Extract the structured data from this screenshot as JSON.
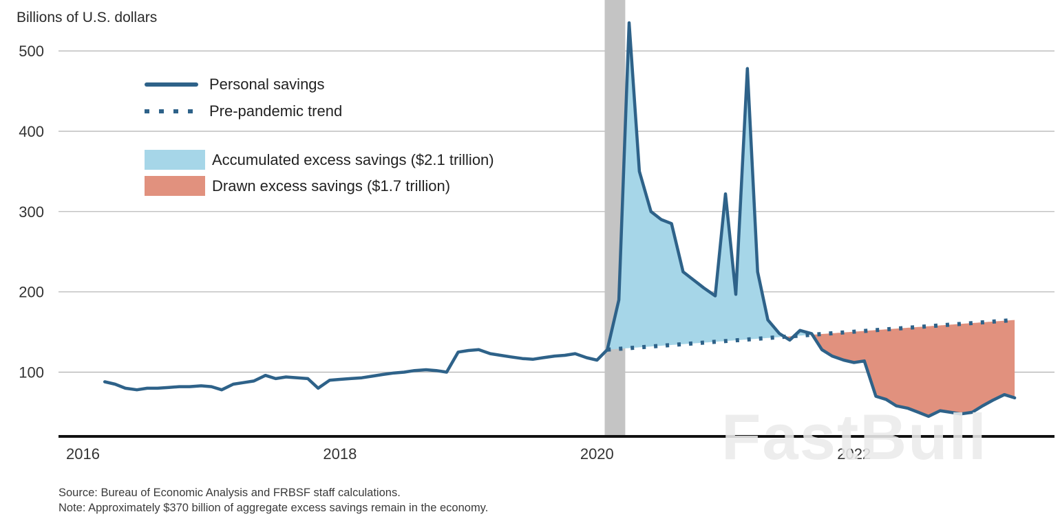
{
  "title": "Billions of U.S. dollars",
  "legend": {
    "personal": "Personal savings",
    "trend": "Pre-pandemic trend",
    "accumulated": "Accumulated excess savings ($2.1 trillion)",
    "drawn": "Drawn excess savings ($1.7 trillion)"
  },
  "footer": {
    "source": "Source: Bureau of Economic Analysis and FRBSF staff calculations.",
    "note": "Note: Approximately $370 billion of aggregate excess savings remain in the economy."
  },
  "watermark": "FastBull",
  "colors": {
    "line": "#2e6289",
    "accumulated_fill": "#a6d6e8",
    "drawn_fill": "#e1917e",
    "recession_band": "#c4c4c4",
    "grid": "#b0b0b0",
    "axis": "#111111",
    "text": "#333333"
  },
  "chart_data": {
    "type": "line",
    "title": "Billions of U.S. dollars",
    "xlabel": "",
    "ylabel": "Billions of U.S. dollars",
    "axes": {
      "x_min": 2015.81,
      "x_max": 2023.56,
      "y_min": 20,
      "y_max": 560
    },
    "yticks": [
      100,
      200,
      300,
      400,
      500
    ],
    "xticks": [
      2016,
      2018,
      2020,
      2022
    ],
    "grid": true,
    "legend_position": "upper-left-inside",
    "recession_band": {
      "x_start": 2020.06,
      "x_end": 2020.22
    },
    "series": [
      {
        "name": "Personal savings",
        "style": "solid",
        "x": [
          2016.17,
          2016.25,
          2016.33,
          2016.42,
          2016.5,
          2016.58,
          2016.67,
          2016.75,
          2016.83,
          2016.92,
          2017.0,
          2017.08,
          2017.17,
          2017.25,
          2017.33,
          2017.42,
          2017.5,
          2017.58,
          2017.67,
          2017.75,
          2017.83,
          2017.92,
          2018.0,
          2018.08,
          2018.17,
          2018.25,
          2018.33,
          2018.42,
          2018.5,
          2018.58,
          2018.67,
          2018.75,
          2018.83,
          2018.92,
          2019.0,
          2019.08,
          2019.17,
          2019.25,
          2019.33,
          2019.42,
          2019.5,
          2019.58,
          2019.67,
          2019.75,
          2019.83,
          2019.92,
          2020.0,
          2020.08,
          2020.17,
          2020.25,
          2020.33,
          2020.42,
          2020.5,
          2020.58,
          2020.67,
          2020.75,
          2020.83,
          2020.92,
          2021.0,
          2021.08,
          2021.17,
          2021.25,
          2021.33,
          2021.42,
          2021.5,
          2021.58,
          2021.67,
          2021.75,
          2021.83,
          2021.92,
          2022.0,
          2022.08,
          2022.17,
          2022.25,
          2022.33,
          2022.42,
          2022.5,
          2022.58,
          2022.67,
          2022.75,
          2022.83,
          2022.92,
          2023.0,
          2023.08,
          2023.17,
          2023.25
        ],
        "values": [
          88,
          85,
          80,
          78,
          80,
          80,
          81,
          82,
          82,
          83,
          82,
          78,
          85,
          87,
          89,
          96,
          92,
          94,
          93,
          92,
          80,
          90,
          91,
          92,
          93,
          95,
          97,
          99,
          100,
          102,
          103,
          102,
          100,
          125,
          127,
          128,
          123,
          121,
          119,
          117,
          116,
          118,
          120,
          121,
          123,
          118,
          115,
          128,
          190,
          535,
          350,
          300,
          290,
          285,
          225,
          215,
          205,
          195,
          322,
          197,
          478,
          225,
          165,
          148,
          140,
          152,
          148,
          128,
          120,
          115,
          112,
          114,
          70,
          66,
          58,
          55,
          50,
          45,
          52,
          50,
          48,
          50,
          58,
          65,
          72,
          68
        ]
      },
      {
        "name": "Pre-pandemic trend",
        "style": "dotted",
        "x": [
          2020.08,
          2023.25
        ],
        "values": [
          128,
          165
        ]
      }
    ],
    "areas": [
      {
        "name": "Accumulated excess savings",
        "rule": "savings_above_trend",
        "total": "$2.1 trillion"
      },
      {
        "name": "Drawn excess savings",
        "rule": "savings_below_trend",
        "total": "$1.7 trillion"
      }
    ]
  }
}
